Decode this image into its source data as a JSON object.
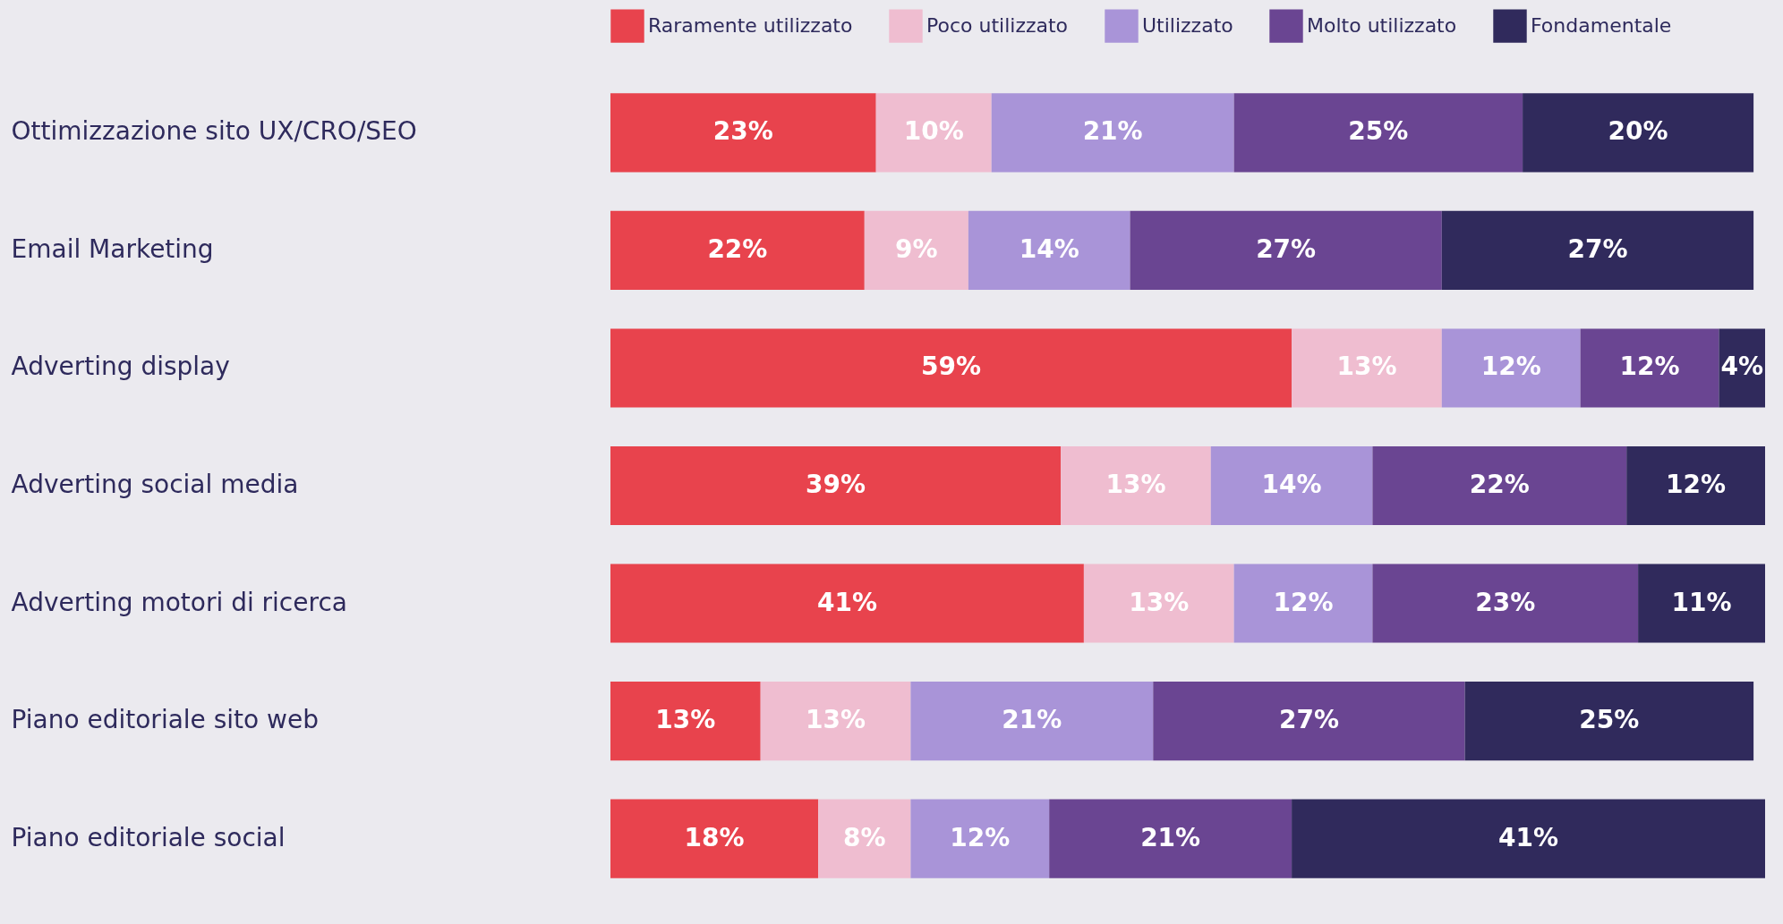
{
  "chart_data": {
    "type": "bar",
    "orientation": "horizontal",
    "stacked": true,
    "legend": "top",
    "tick_labels": "y",
    "categories": [
      "Ottimizzazione sito UX/CRO/SEO",
      "Email Marketing",
      "Adverting display",
      "Adverting social media",
      "Adverting motori di ricerca",
      "Piano editoriale sito web",
      "Piano editoriale social"
    ],
    "series": [
      {
        "name": "Raramente utilizzato",
        "color": "#e8434d",
        "values": [
          23,
          22,
          59,
          39,
          41,
          13,
          18
        ],
        "value_labels": [
          "23%",
          "22%",
          "59%",
          "39%",
          "41%",
          "13%",
          "18%"
        ]
      },
      {
        "name": "Poco utilizzato",
        "color": "#efbdd0",
        "values": [
          10,
          9,
          13,
          13,
          13,
          13,
          8
        ],
        "value_labels": [
          "10%",
          "9%",
          "13%",
          "13%",
          "13%",
          "13%",
          "8%"
        ]
      },
      {
        "name": "Utilizzato",
        "color": "#a994d8",
        "values": [
          21,
          14,
          12,
          14,
          12,
          21,
          12
        ],
        "value_labels": [
          "21%",
          "14%",
          "12%",
          "14%",
          "12%",
          "21%",
          "12%"
        ]
      },
      {
        "name": "Molto utilizzato",
        "color": "#6a4592",
        "values": [
          25,
          27,
          12,
          22,
          23,
          27,
          21
        ],
        "value_labels": [
          "25%",
          "27%",
          "12%",
          "22%",
          "23%",
          "27%",
          "21%"
        ]
      },
      {
        "name": "Fondamentale",
        "color": "#302a5c",
        "values": [
          20,
          27,
          4,
          12,
          11,
          25,
          41
        ],
        "value_labels": [
          "20%",
          "27%",
          "4%",
          "12%",
          "11%",
          "25%",
          "41%"
        ]
      }
    ]
  }
}
